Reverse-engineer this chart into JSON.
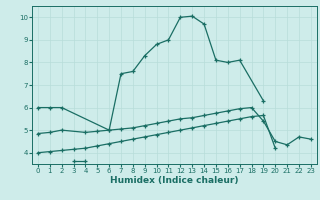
{
  "xlabel": "Humidex (Indice chaleur)",
  "ylabel": "",
  "xlim": [
    -0.5,
    23.5
  ],
  "ylim": [
    3.5,
    10.5
  ],
  "bg_color": "#ceecea",
  "grid_color": "#b8ddd9",
  "line_color": "#1a6e64",
  "xticks": [
    0,
    1,
    2,
    3,
    4,
    5,
    6,
    7,
    8,
    9,
    10,
    11,
    12,
    13,
    14,
    15,
    16,
    17,
    18,
    19,
    20,
    21,
    22,
    23
  ],
  "yticks": [
    4,
    5,
    6,
    7,
    8,
    9,
    10
  ],
  "series": [
    {
      "x": [
        0,
        1,
        2,
        6,
        7,
        8,
        9,
        10,
        11,
        12,
        13,
        14,
        15,
        16,
        17,
        19
      ],
      "y": [
        6.0,
        6.0,
        6.0,
        5.0,
        7.5,
        7.6,
        8.3,
        8.8,
        9.0,
        10.0,
        10.05,
        9.7,
        8.1,
        8.0,
        8.1,
        6.3
      ]
    },
    {
      "x": [
        3,
        4
      ],
      "y": [
        3.65,
        3.65
      ]
    },
    {
      "x": [
        0,
        1,
        2,
        4,
        5,
        6,
        7,
        8,
        9,
        10,
        11,
        12,
        13,
        14,
        15,
        16,
        17,
        18,
        19,
        20,
        21,
        22,
        23
      ],
      "y": [
        4.85,
        4.9,
        5.0,
        4.9,
        4.95,
        5.0,
        5.05,
        5.1,
        5.2,
        5.3,
        5.4,
        5.5,
        5.55,
        5.65,
        5.75,
        5.85,
        5.95,
        6.0,
        5.4,
        4.5,
        4.35,
        4.7,
        4.6
      ]
    },
    {
      "x": [
        0,
        1,
        2,
        3,
        4,
        5,
        6,
        7,
        8,
        9,
        10,
        11,
        12,
        13,
        14,
        15,
        16,
        17,
        18,
        19,
        20
      ],
      "y": [
        4.0,
        4.05,
        4.1,
        4.15,
        4.2,
        4.3,
        4.4,
        4.5,
        4.6,
        4.7,
        4.8,
        4.9,
        5.0,
        5.1,
        5.2,
        5.3,
        5.4,
        5.5,
        5.6,
        5.65,
        4.2
      ]
    }
  ]
}
